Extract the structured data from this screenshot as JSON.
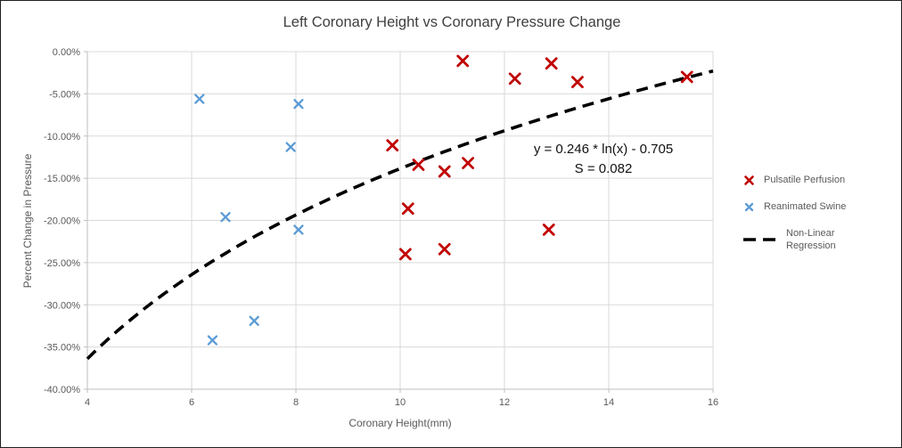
{
  "chart_data": {
    "type": "scatter",
    "title": "Left Coronary Height vs Coronary Pressure Change",
    "xlabel": "Coronary Height(mm)",
    "ylabel": "Percent Change in Pressure",
    "xlim": [
      4,
      16
    ],
    "ylim": [
      -40,
      0
    ],
    "x_ticks": [
      4,
      6,
      8,
      10,
      12,
      14,
      16
    ],
    "y_ticks": [
      0,
      -5,
      -10,
      -15,
      -20,
      -25,
      -30,
      -35,
      -40
    ],
    "y_tick_suffix": "%",
    "grid": true,
    "legend_position": "right",
    "colors": {
      "gridline": "#D9D9D9",
      "axis": "#BFBFBF",
      "tick_text": "#595959",
      "title_text": "#404040",
      "regression": "#000000"
    },
    "series": [
      {
        "name": "Pulsatile Perfusion",
        "color": "#C00000",
        "marker": "x",
        "marker_size": 11,
        "marker_stroke": 2.8,
        "points": [
          [
            11.2,
            -1.1
          ],
          [
            12.9,
            -1.4
          ],
          [
            12.2,
            -3.2
          ],
          [
            13.4,
            -3.6
          ],
          [
            15.5,
            -3.0
          ],
          [
            9.85,
            -11.1
          ],
          [
            10.35,
            -13.4
          ],
          [
            10.85,
            -14.2
          ],
          [
            11.3,
            -13.2
          ],
          [
            10.15,
            -18.6
          ],
          [
            12.85,
            -21.1
          ],
          [
            10.1,
            -24.0
          ],
          [
            10.85,
            -23.4
          ]
        ]
      },
      {
        "name": "Reanimated Swine",
        "color": "#5B9BD5",
        "marker": "x",
        "marker_size": 9,
        "marker_stroke": 2.3,
        "points": [
          [
            6.15,
            -5.6
          ],
          [
            8.05,
            -6.2
          ],
          [
            7.9,
            -11.3
          ],
          [
            6.65,
            -19.6
          ],
          [
            8.05,
            -21.1
          ],
          [
            7.2,
            -31.9
          ],
          [
            6.4,
            -34.2
          ]
        ]
      }
    ],
    "regression": {
      "name": "Non-Linear Regression",
      "a": 0.246,
      "b": -0.705,
      "dash": "13 8",
      "stroke_width": 3.6
    },
    "annotation": {
      "equation": "y = 0.246 * ln(x) - 0.705",
      "s_value": "S = 0.082"
    }
  }
}
